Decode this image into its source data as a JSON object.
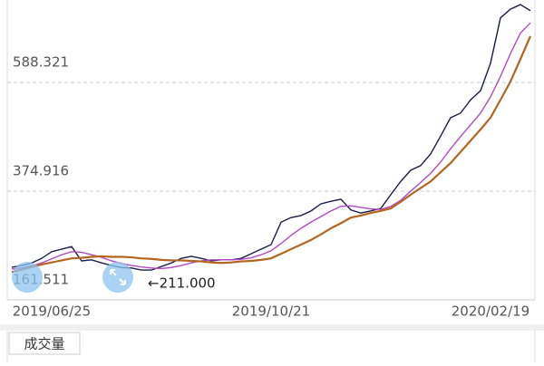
{
  "chart_data": {
    "type": "line",
    "categories": [
      null,
      null,
      null,
      null,
      "2019/06/25",
      null,
      null,
      null,
      null,
      null,
      null,
      null,
      null,
      null,
      null,
      null,
      null,
      null,
      null,
      null,
      null,
      null,
      null,
      null,
      null,
      null,
      "2019/10/21",
      null,
      null,
      null,
      null,
      null,
      null,
      null,
      null,
      null,
      null,
      null,
      null,
      null,
      null,
      null,
      null,
      null,
      null,
      null,
      null,
      null,
      "2020/02/19",
      null,
      null,
      null,
      null
    ],
    "series": [
      {
        "color": "#1c1c4a",
        "values": [
          225.5,
          229,
          234,
          243,
          256,
          261,
          266,
          238,
          240,
          234,
          229,
          225,
          224,
          220,
          220,
          227,
          234,
          243,
          247,
          243,
          238,
          240,
          240,
          243,
          252,
          261,
          270,
          314,
          323,
          327,
          336,
          350,
          355,
          359,
          338,
          332,
          336,
          341,
          368,
          394,
          416,
          425,
          448,
          483,
          519,
          528,
          554,
          572,
          626,
          715,
          732,
          741,
          729
        ]
      },
      {
        "color": "#b548c4",
        "values": [
          222,
          224,
          228,
          234,
          242,
          250,
          256,
          255,
          250,
          245,
          238,
          233,
          229,
          226,
          224,
          223,
          225,
          229,
          234,
          238,
          240,
          240,
          240,
          241,
          244,
          250,
          258,
          272,
          288,
          302,
          314,
          325,
          336,
          345,
          346,
          343,
          340,
          339,
          345,
          357,
          375,
          392,
          410,
          432,
          458,
          482,
          505,
          528,
          560,
          600,
          645,
          685,
          705
        ]
      },
      {
        "color": "#b5651d",
        "values": [
          216,
          221,
          226,
          231,
          235,
          239,
          243,
          244,
          246,
          247,
          246,
          246,
          245,
          243,
          242,
          240,
          239,
          239,
          238,
          237,
          235,
          234,
          235,
          237,
          238,
          240,
          243,
          252,
          261,
          270,
          279,
          290,
          302,
          312,
          323,
          327,
          332,
          336,
          341,
          354,
          368,
          381,
          394,
          412,
          430,
          452,
          474,
          496,
          519,
          554,
          590,
          634,
          679
        ]
      }
    ],
    "ylim": [
      161.511,
      750
    ],
    "yticks": [
      161.511,
      374.916,
      588.321
    ],
    "grid": true,
    "annotation": "←211.000",
    "volume_label": "成交量"
  }
}
